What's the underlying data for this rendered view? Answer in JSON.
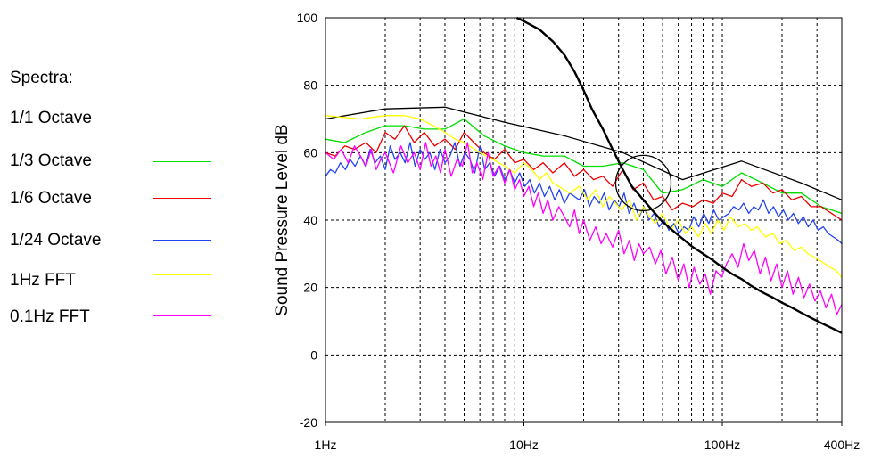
{
  "chart_data": {
    "type": "line",
    "title": "",
    "xlabel": "",
    "ylabel": "Sound Pressure Level dB",
    "x_scale": "log",
    "xlim": [
      1,
      400
    ],
    "ylim": [
      -20,
      100
    ],
    "x_ticks": [
      {
        "value": 1,
        "label": "1Hz"
      },
      {
        "value": 10,
        "label": "10Hz"
      },
      {
        "value": 100,
        "label": "100Hz"
      },
      {
        "value": 400,
        "label": "400Hz"
      }
    ],
    "y_ticks": [
      100,
      80,
      60,
      40,
      20,
      0,
      -20
    ],
    "grid": true,
    "legend_title": "Spectra:",
    "legend_position": "left",
    "annotations": [
      {
        "type": "circle",
        "x": 40,
        "y": 51
      }
    ],
    "series": [
      {
        "name": "1/1 Octave",
        "color": "#000000",
        "x": [
          1,
          2,
          4,
          8,
          16,
          31.5,
          63,
          125,
          250,
          400
        ],
        "y": [
          70,
          73,
          73.5,
          69,
          65,
          60,
          52,
          57.5,
          51,
          46
        ]
      },
      {
        "name": "1/3 Octave",
        "color": "#00dd00",
        "x": [
          1,
          1.25,
          1.6,
          2,
          2.5,
          3.15,
          4,
          5,
          6.3,
          8,
          10,
          12.5,
          16,
          20,
          25,
          31.5,
          40,
          50,
          63,
          80,
          100,
          125,
          160,
          200,
          250,
          315,
          400
        ],
        "y": [
          64,
          63,
          66,
          68,
          68,
          67,
          67,
          70,
          65,
          62,
          60,
          59,
          59,
          56,
          56,
          57,
          55,
          48,
          49,
          52,
          50,
          54,
          51,
          48,
          48,
          44,
          42
        ]
      },
      {
        "name": "1/6 Octave",
        "color": "#ee0000",
        "x": [
          1,
          1.12,
          1.25,
          1.4,
          1.6,
          1.8,
          2,
          2.24,
          2.5,
          2.8,
          3.15,
          3.55,
          4,
          4.5,
          5,
          5.6,
          6.3,
          7.1,
          8,
          9,
          10,
          11.2,
          12.5,
          14,
          16,
          18,
          20,
          22.4,
          25,
          28,
          31.5,
          35.5,
          40,
          45,
          50,
          56,
          63,
          71,
          80,
          90,
          100,
          112,
          125,
          140,
          160,
          180,
          200,
          224,
          250,
          280,
          315,
          355,
          400
        ],
        "y": [
          60,
          59,
          62,
          61,
          63,
          60,
          66,
          64,
          68,
          63,
          66,
          62,
          64,
          61,
          66,
          63,
          60,
          58,
          61,
          57,
          58,
          55,
          57,
          54,
          57,
          53,
          55,
          52,
          53,
          50,
          55,
          49,
          51,
          46,
          47,
          43,
          45,
          44,
          46,
          45,
          48,
          47,
          52,
          50,
          51,
          48,
          49,
          46,
          47,
          44,
          44,
          42,
          40
        ]
      },
      {
        "name": "1/24 Octave",
        "color": "#2244ee",
        "x": [
          1,
          1.06,
          1.12,
          1.19,
          1.26,
          1.33,
          1.41,
          1.5,
          1.59,
          1.68,
          1.78,
          1.89,
          2,
          2.12,
          2.24,
          2.38,
          2.52,
          2.67,
          2.83,
          3,
          3.17,
          3.36,
          3.56,
          3.78,
          4,
          4.24,
          4.49,
          4.76,
          5.04,
          5.34,
          5.66,
          6,
          6.35,
          6.73,
          7.13,
          7.55,
          8,
          8.48,
          8.98,
          9.51,
          10.1,
          10.7,
          11.3,
          12,
          12.7,
          13.5,
          14.3,
          15.1,
          16,
          17,
          18,
          19,
          20.2,
          21.4,
          22.6,
          24,
          25.4,
          26.9,
          28.5,
          30.2,
          32,
          33.9,
          35.9,
          38.1,
          40.3,
          42.7,
          45.3,
          48,
          50.8,
          53.8,
          57,
          60.4,
          64,
          67.8,
          71.8,
          76.1,
          80.6,
          85.4,
          90.5,
          95.9,
          102,
          108,
          114,
          121,
          128,
          136,
          144,
          152,
          161,
          171,
          181,
          192,
          203,
          215,
          228,
          242,
          256,
          271,
          287,
          304,
          323,
          342,
          362,
          384,
          400
        ],
        "y": [
          53,
          55,
          54,
          57,
          55,
          58,
          56,
          59,
          56,
          61,
          57,
          59,
          55,
          62,
          58,
          60,
          57,
          63,
          56,
          61,
          58,
          60,
          55,
          61,
          57,
          59,
          63,
          56,
          60,
          58,
          54,
          62,
          55,
          57,
          53,
          56,
          52,
          55,
          51,
          54,
          50,
          52,
          48,
          51,
          47,
          50,
          46,
          49,
          45,
          48,
          47,
          46,
          49,
          44,
          47,
          45,
          48,
          43,
          46,
          44,
          48,
          42,
          45,
          41,
          44,
          40,
          42,
          38,
          40,
          37,
          39,
          36,
          38,
          37,
          41,
          38,
          42,
          39,
          43,
          40,
          41,
          42,
          44,
          43,
          45,
          42,
          44,
          43,
          46,
          42,
          44,
          41,
          43,
          40,
          42,
          39,
          41,
          38,
          40,
          37,
          38,
          36,
          35,
          34,
          33
        ]
      },
      {
        "name": "1Hz FFT",
        "color": "#ffff00",
        "x": [
          1,
          1.5,
          2,
          2.5,
          3,
          3.5,
          4,
          4.5,
          5,
          6,
          7,
          8,
          9,
          10,
          11,
          12,
          13,
          14,
          15,
          17,
          19,
          21,
          23,
          25,
          27,
          29,
          31,
          34,
          37,
          40,
          43,
          46,
          50,
          55,
          60,
          65,
          70,
          76,
          82,
          88,
          95,
          102,
          110,
          120,
          130,
          140,
          150,
          165,
          180,
          195,
          210,
          230,
          250,
          270,
          290,
          310,
          330,
          350,
          375,
          400
        ],
        "y": [
          71,
          70,
          71,
          71,
          70,
          68,
          66,
          64,
          63,
          60,
          58,
          56,
          54,
          57,
          55,
          52,
          54,
          51,
          50,
          48,
          50,
          46,
          49,
          44,
          47,
          45,
          43,
          46,
          40,
          44,
          41,
          39,
          42,
          37,
          40,
          36,
          38,
          35,
          39,
          36,
          40,
          37,
          41,
          38,
          39,
          37,
          38,
          35,
          36,
          33,
          34,
          31,
          32,
          30,
          29,
          28,
          27,
          26,
          25,
          23
        ]
      },
      {
        "name": "0.1Hz FFT",
        "color": "#ff00ff",
        "x": [
          1,
          1.1,
          1.2,
          1.3,
          1.4,
          1.5,
          1.6,
          1.7,
          1.8,
          1.9,
          2,
          2.2,
          2.4,
          2.6,
          2.8,
          3,
          3.2,
          3.4,
          3.6,
          3.8,
          4,
          4.3,
          4.6,
          4.9,
          5.2,
          5.5,
          5.8,
          6.2,
          6.6,
          7,
          7.5,
          8,
          8.5,
          9,
          9.5,
          10,
          10.6,
          11.2,
          11.8,
          12.5,
          13.2,
          14,
          15,
          16,
          17,
          18,
          19,
          20,
          21.5,
          23,
          24.5,
          26,
          28,
          30,
          32,
          34,
          36,
          38,
          40,
          43,
          46,
          49,
          52,
          56,
          60,
          64,
          68,
          72,
          77,
          82,
          87,
          93,
          99,
          105,
          112,
          120,
          128,
          136,
          145,
          155,
          165,
          176,
          188,
          200,
          213,
          227,
          242,
          258,
          275,
          293,
          312,
          333,
          355,
          378,
          400
        ],
        "y": [
          60,
          58,
          61,
          57,
          62,
          59,
          56,
          61,
          55,
          58,
          60,
          54,
          62,
          57,
          60,
          55,
          63,
          56,
          59,
          54,
          61,
          53,
          58,
          56,
          63,
          54,
          57,
          52,
          60,
          53,
          56,
          51,
          55,
          49,
          52,
          47,
          50,
          44,
          48,
          42,
          46,
          40,
          44,
          41,
          38,
          43,
          36,
          40,
          34,
          38,
          33,
          36,
          32,
          37,
          30,
          34,
          28,
          33,
          30,
          32,
          27,
          31,
          24,
          29,
          22,
          27,
          20,
          26,
          21,
          24,
          18,
          25,
          23,
          27,
          30,
          26,
          33,
          28,
          31,
          24,
          29,
          22,
          27,
          20,
          25,
          18,
          23,
          17,
          21,
          16,
          19,
          14,
          18,
          12,
          15
        ]
      },
      {
        "name": "",
        "color": "#000000",
        "x": [
          9.2,
          10,
          12,
          14,
          16,
          18,
          20,
          22,
          25,
          28,
          31.5,
          35,
          40,
          45,
          50,
          56,
          63,
          71,
          80,
          90,
          100,
          112,
          125,
          140,
          160,
          180,
          200,
          225,
          250,
          280,
          315,
          355,
          400
        ],
        "y": [
          100,
          99,
          96.5,
          93,
          89,
          84,
          78.5,
          73,
          67,
          61,
          55,
          50,
          46,
          42.5,
          39.5,
          37,
          34.5,
          32,
          30,
          28,
          26,
          24,
          22.5,
          20.5,
          18.5,
          17,
          15.5,
          14,
          12.5,
          11,
          9.5,
          8,
          6.5
        ]
      }
    ]
  }
}
